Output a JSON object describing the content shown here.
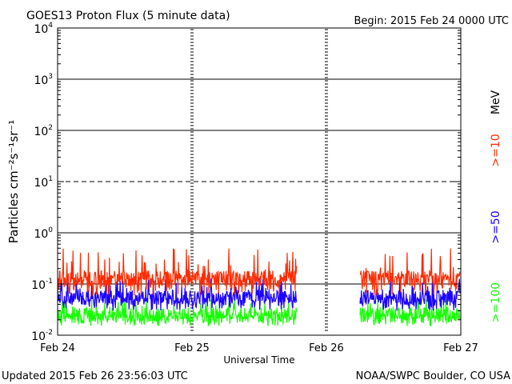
{
  "chart_data": {
    "type": "line",
    "title": "GOES13 Proton Flux (5 minute data)",
    "begin_label": "Begin: 2015 Feb 24 0000 UTC",
    "xlabel": "Universal Time",
    "ylabel": "Particles cm⁻²s⁻¹sr⁻¹",
    "y_scale": "log",
    "ylim": [
      0.01,
      10000
    ],
    "y_ticks": [
      {
        "exp": "-2",
        "value": 0.01
      },
      {
        "exp": "-1",
        "value": 0.1
      },
      {
        "exp": "0",
        "value": 1
      },
      {
        "exp": "1",
        "value": 10
      },
      {
        "exp": "2",
        "value": 100
      },
      {
        "exp": "3",
        "value": 1000
      },
      {
        "exp": "4",
        "value": 10000
      }
    ],
    "x_ticks": [
      "Feb 24",
      "Feb 25",
      "Feb 26",
      "Feb 27"
    ],
    "x_range_days": [
      0,
      3
    ],
    "gap_days": [
      1.78,
      2.25
    ],
    "grid": {
      "solid_levels": [
        1,
        100,
        1000
      ],
      "dashed_levels": [
        10
      ],
      "threshold_levels": [
        0.1
      ]
    },
    "unit_label": "MeV",
    "series": [
      {
        "name": ">=10",
        "color": "#ff2a00",
        "typical_flux": 0.13,
        "min_flux": 0.06,
        "max_flux": 0.5
      },
      {
        "name": ">=50",
        "color": "#1a00ff",
        "typical_flux": 0.055,
        "min_flux": 0.03,
        "max_flux": 0.13
      },
      {
        "name": ">=100",
        "color": "#14ff00",
        "typical_flux": 0.025,
        "min_flux": 0.015,
        "max_flux": 0.05
      }
    ]
  },
  "footer": {
    "updated": "Updated 2015 Feb 26 23:56:03 UTC",
    "source": "NOAA/SWPC Boulder, CO USA"
  }
}
